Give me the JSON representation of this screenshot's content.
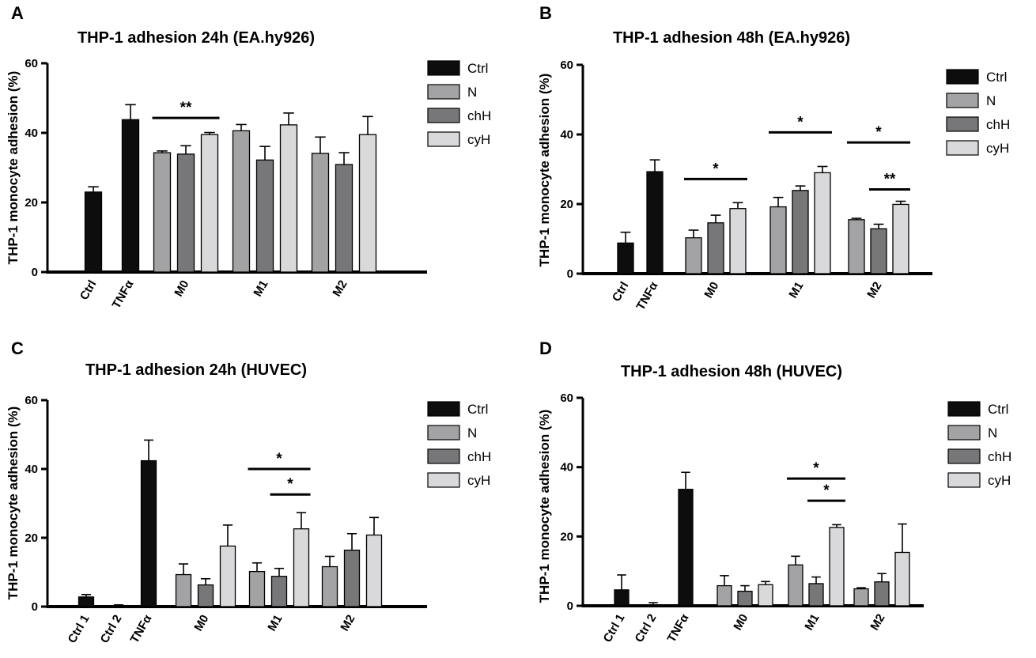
{
  "colors": {
    "Ctrl": "#0d0d0d",
    "N": "#a3a3a6",
    "chH": "#77777a",
    "cyH": "#d9d9db",
    "axis": "#000000"
  },
  "legend_labels": [
    "Ctrl",
    "N",
    "chH",
    "cyH"
  ],
  "chart_data": [
    {
      "panel": "A",
      "type": "bar",
      "title": "THP-1 adhesion 24h (EA.hy926)",
      "ylabel": "THP-1 monocyte adhesion (%)",
      "xlabel": "",
      "ylim": [
        0,
        60
      ],
      "yticks": [
        0,
        20,
        40,
        60
      ],
      "legend": [
        "Ctrl",
        "N",
        "chH",
        "cyH"
      ],
      "legend_position": "right",
      "categories": [
        "Ctrl",
        "TNFα",
        "M0",
        "M1",
        "M2"
      ],
      "groups": [
        {
          "label": "Ctrl",
          "bars": [
            {
              "series": "Ctrl",
              "value": 23,
              "error": 1.5
            }
          ]
        },
        {
          "label": "TNFα",
          "bars": [
            {
              "series": "Ctrl",
              "value": 43.8,
              "error": 4.3
            }
          ]
        },
        {
          "label": "M0",
          "bars": [
            {
              "series": "N",
              "value": 34.3,
              "error": 0.5
            },
            {
              "series": "chH",
              "value": 33.9,
              "error": 2.4
            },
            {
              "series": "cyH",
              "value": 39.5,
              "error": 0.6
            }
          ]
        },
        {
          "label": "M1",
          "bars": [
            {
              "series": "N",
              "value": 40.6,
              "error": 1.8
            },
            {
              "series": "chH",
              "value": 32.2,
              "error": 3.9
            },
            {
              "series": "cyH",
              "value": 42.3,
              "error": 3.4
            }
          ]
        },
        {
          "label": "M2",
          "bars": [
            {
              "series": "N",
              "value": 34.1,
              "error": 4.7
            },
            {
              "series": "chH",
              "value": 30.9,
              "error": 3.4
            },
            {
              "series": "cyH",
              "value": 39.5,
              "error": 5.2
            }
          ]
        }
      ],
      "significance": [
        {
          "label": "**",
          "group": 2,
          "from_bar": 0,
          "to_bar": 2,
          "y": 44.3
        }
      ]
    },
    {
      "panel": "B",
      "type": "bar",
      "title": "THP-1 adhesion 48h (EA.hy926)",
      "ylabel": "THP-1 monocyte adhesion (%)",
      "xlabel": "",
      "ylim": [
        0,
        60
      ],
      "yticks": [
        0,
        20,
        40,
        60
      ],
      "legend": [
        "Ctrl",
        "N",
        "chH",
        "cyH"
      ],
      "legend_position": "right",
      "categories": [
        "Ctrl",
        "TNFα",
        "M0",
        "M1",
        "M2"
      ],
      "groups": [
        {
          "label": "Ctrl",
          "bars": [
            {
              "series": "Ctrl",
              "value": 8.8,
              "error": 3.1
            }
          ]
        },
        {
          "label": "TNFα",
          "bars": [
            {
              "series": "Ctrl",
              "value": 29.3,
              "error": 3.4
            }
          ]
        },
        {
          "label": "M0",
          "bars": [
            {
              "series": "N",
              "value": 10.3,
              "error": 2.2
            },
            {
              "series": "chH",
              "value": 14.6,
              "error": 2.2
            },
            {
              "series": "cyH",
              "value": 18.7,
              "error": 1.7
            }
          ]
        },
        {
          "label": "M1",
          "bars": [
            {
              "series": "N",
              "value": 19.2,
              "error": 2.7
            },
            {
              "series": "chH",
              "value": 23.9,
              "error": 1.3
            },
            {
              "series": "cyH",
              "value": 29.0,
              "error": 1.8
            }
          ]
        },
        {
          "label": "M2",
          "bars": [
            {
              "series": "N",
              "value": 15.5,
              "error": 0.4
            },
            {
              "series": "chH",
              "value": 12.9,
              "error": 1.3
            },
            {
              "series": "cyH",
              "value": 19.9,
              "error": 0.9
            }
          ]
        }
      ],
      "significance": [
        {
          "label": "*",
          "group": 2,
          "from_bar": 0,
          "to_bar": 2,
          "y": 27.2
        },
        {
          "label": "*",
          "group": 3,
          "from_bar": 0,
          "to_bar": 2,
          "y": 40.6
        },
        {
          "label": "*",
          "group": 4,
          "from_bar": 0,
          "to_bar": 2,
          "y": 37.7
        },
        {
          "label": "**",
          "group": 4,
          "from_bar": 1,
          "to_bar": 2,
          "y": 24.2
        }
      ]
    },
    {
      "panel": "C",
      "type": "bar",
      "title": "THP-1 adhesion 24h (HUVEC)",
      "ylabel": "THP-1 monocyte adhesion (%)",
      "xlabel": "",
      "ylim": [
        0,
        60
      ],
      "yticks": [
        0,
        20,
        40,
        60
      ],
      "legend": [
        "Ctrl",
        "N",
        "chH",
        "cyH"
      ],
      "legend_position": "right",
      "categories": [
        "Ctrl 1",
        "Ctrl 2",
        "TNFα",
        "M0",
        "M1",
        "M2"
      ],
      "groups": [
        {
          "label": "Ctrl 1",
          "bars": [
            {
              "series": "Ctrl",
              "value": 2.8,
              "error": 0.7
            }
          ]
        },
        {
          "label": "Ctrl 2",
          "bars": [
            {
              "series": "Ctrl",
              "value": 0.3,
              "error": 0.2
            }
          ]
        },
        {
          "label": "TNFα",
          "bars": [
            {
              "series": "Ctrl",
              "value": 42.4,
              "error": 6.0
            }
          ]
        },
        {
          "label": "M0",
          "bars": [
            {
              "series": "N",
              "value": 9.3,
              "error": 3.1
            },
            {
              "series": "chH",
              "value": 6.3,
              "error": 1.8
            },
            {
              "series": "cyH",
              "value": 17.6,
              "error": 6.1
            }
          ]
        },
        {
          "label": "M1",
          "bars": [
            {
              "series": "N",
              "value": 10.2,
              "error": 2.5
            },
            {
              "series": "chH",
              "value": 8.8,
              "error": 2.3
            },
            {
              "series": "cyH",
              "value": 22.6,
              "error": 4.7
            }
          ]
        },
        {
          "label": "M2",
          "bars": [
            {
              "series": "N",
              "value": 11.6,
              "error": 3.0
            },
            {
              "series": "chH",
              "value": 16.4,
              "error": 4.8
            },
            {
              "series": "cyH",
              "value": 20.8,
              "error": 5.1
            }
          ]
        }
      ],
      "significance": [
        {
          "label": "*",
          "group": 4,
          "from_bar": 0,
          "to_bar": 2,
          "y": 40.0
        },
        {
          "label": "*",
          "group": 4,
          "from_bar": 1,
          "to_bar": 2,
          "y": 32.6
        }
      ]
    },
    {
      "panel": "D",
      "type": "bar",
      "title": "THP-1 adhesion 48h (HUVEC)",
      "ylabel": "THP-1 monocyte adhesion (%)",
      "xlabel": "",
      "ylim": [
        0,
        60
      ],
      "yticks": [
        0,
        20,
        40,
        60
      ],
      "legend": [
        "Ctrl",
        "N",
        "chH",
        "cyH"
      ],
      "legend_position": "right",
      "categories": [
        "Ctrl 1",
        "Ctrl 2",
        "TNFα",
        "M0",
        "M1",
        "M2"
      ],
      "groups": [
        {
          "label": "Ctrl 1",
          "bars": [
            {
              "series": "Ctrl",
              "value": 4.6,
              "error": 4.3
            }
          ]
        },
        {
          "label": "Ctrl 2",
          "bars": [
            {
              "series": "Ctrl",
              "value": 0.3,
              "error": 0.6
            }
          ]
        },
        {
          "label": "TNFα",
          "bars": [
            {
              "series": "Ctrl",
              "value": 33.6,
              "error": 4.9
            }
          ]
        },
        {
          "label": "M0",
          "bars": [
            {
              "series": "N",
              "value": 5.8,
              "error": 2.9
            },
            {
              "series": "chH",
              "value": 4.2,
              "error": 1.6
            },
            {
              "series": "cyH",
              "value": 6.1,
              "error": 0.9
            }
          ]
        },
        {
          "label": "M1",
          "bars": [
            {
              "series": "N",
              "value": 11.8,
              "error": 2.5
            },
            {
              "series": "chH",
              "value": 6.4,
              "error": 1.9
            },
            {
              "series": "cyH",
              "value": 22.6,
              "error": 0.8
            }
          ]
        },
        {
          "label": "M2",
          "bars": [
            {
              "series": "N",
              "value": 4.9,
              "error": 0.3
            },
            {
              "series": "chH",
              "value": 6.9,
              "error": 2.4
            },
            {
              "series": "cyH",
              "value": 15.4,
              "error": 8.2
            }
          ]
        }
      ],
      "significance": [
        {
          "label": "*",
          "group": 4,
          "from_bar": 0,
          "to_bar": 2,
          "y": 36.7
        },
        {
          "label": "*",
          "group": 4,
          "from_bar": 1,
          "to_bar": 2,
          "y": 30.3
        }
      ]
    }
  ]
}
